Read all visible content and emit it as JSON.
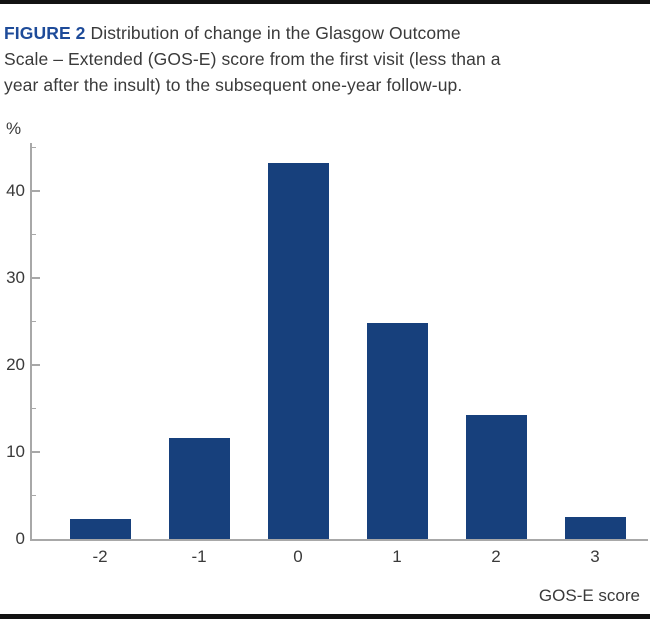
{
  "caption": {
    "label": "FIGURE 2",
    "line1_rest": " Distribution of change in the Glasgow Outcome",
    "line2": "Scale – Extended (GOS-E) score from the first visit (less than a",
    "line3": "year after the insult) to the subsequent one-year follow-up."
  },
  "colors": {
    "caption_label": "#1e4b99",
    "caption_text": "#3a3a3a",
    "rule": "#121212",
    "bar": "#17407c",
    "axis": "#a8a8a8",
    "tick_text": "#3a3a3a"
  },
  "chart_data": {
    "type": "bar",
    "categories": [
      "-2",
      "-1",
      "0",
      "1",
      "2",
      "3"
    ],
    "values": [
      2.3,
      11.6,
      43.2,
      24.8,
      14.2,
      2.5
    ],
    "xlabel": "GOS-E score",
    "ylabel": "%",
    "ylim": [
      0,
      45.5
    ],
    "yticks_major": [
      0,
      10,
      20,
      30,
      40
    ],
    "yticks_minor": [
      5,
      15,
      25,
      35,
      45
    ],
    "grid": false,
    "legend": "none",
    "bar_color": "#17407c",
    "axis_color": "#a8a8a8"
  }
}
